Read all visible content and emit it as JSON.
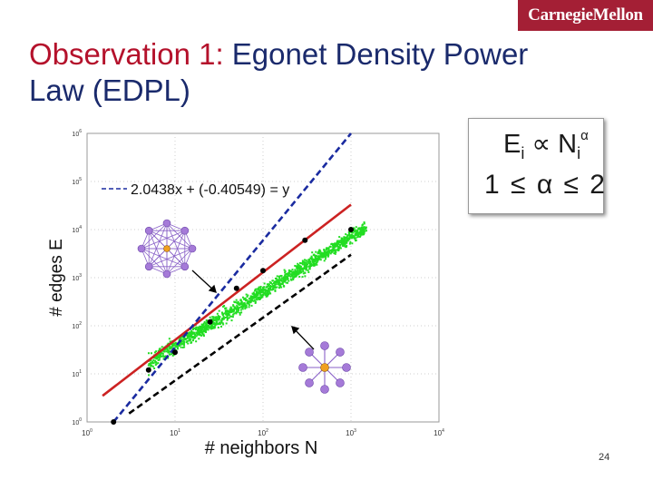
{
  "slide": {
    "logo_text": "CarnegieMellon",
    "title_part1": "Observation 1:",
    "title_part2": " Egonet Density Power Law (EDPL)",
    "formula": {
      "E": "E",
      "E_sub": "i",
      "prop": " ∝ N",
      "N_sub": "i",
      "alpha_sup": "α",
      "range": "1 ≤ α ≤ 2"
    },
    "page_number": "24"
  },
  "chart_data": {
    "type": "scatter",
    "xlabel": "# neighbors N",
    "ylabel": "# edges E",
    "x_scale": "log",
    "y_scale": "log",
    "xlim": [
      1,
      10000
    ],
    "ylim": [
      1,
      1000000
    ],
    "x_ticks": [
      "10^0",
      "10^1",
      "10^2",
      "10^3",
      "10^4"
    ],
    "y_ticks": [
      "10^0",
      "10^1",
      "10^2",
      "10^3",
      "10^4",
      "10^5",
      "10^6"
    ],
    "grid": true,
    "legend": {
      "text": "2.0438x + (-0.40549) = y",
      "position": "top-left"
    },
    "series": [
      {
        "name": "",
        "role": "egonets",
        "color": "#22dd22",
        "description_points": "dense cloud"
      },
      {
        "name": "",
        "role": "bucket medians",
        "color": "#000000",
        "x": [
          2,
          5,
          10,
          25,
          50,
          100,
          300,
          1000
        ],
        "y": [
          1,
          12,
          28,
          120,
          600,
          1400,
          6000,
          10000
        ]
      },
      {
        "name": "",
        "role": "fit",
        "color": "#cc2222",
        "x": [
          1.5,
          1000
        ],
        "y": [
          3.5,
          33000
        ]
      },
      {
        "name": "",
        "role": "upper bound (clique)",
        "color": "#1a2ba0",
        "x": [
          2,
          1000
        ],
        "y": [
          1,
          1000000
        ]
      },
      {
        "name": "",
        "role": "lower bound (star)",
        "color": "#000000",
        "x": [
          3,
          1000
        ],
        "y": [
          1.5,
          3000
        ]
      }
    ]
  }
}
